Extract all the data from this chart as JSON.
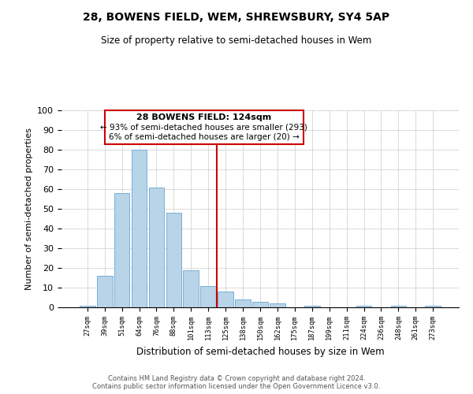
{
  "title": "28, BOWENS FIELD, WEM, SHREWSBURY, SY4 5AP",
  "subtitle": "Size of property relative to semi-detached houses in Wem",
  "xlabel": "Distribution of semi-detached houses by size in Wem",
  "ylabel": "Number of semi-detached properties",
  "bin_labels": [
    "27sqm",
    "39sqm",
    "51sqm",
    "64sqm",
    "76sqm",
    "88sqm",
    "101sqm",
    "113sqm",
    "125sqm",
    "138sqm",
    "150sqm",
    "162sqm",
    "175sqm",
    "187sqm",
    "199sqm",
    "211sqm",
    "224sqm",
    "236sqm",
    "248sqm",
    "261sqm",
    "273sqm"
  ],
  "bar_heights": [
    1,
    16,
    58,
    80,
    61,
    48,
    19,
    11,
    8,
    4,
    3,
    2,
    0,
    1,
    0,
    0,
    1,
    0,
    1,
    0,
    1
  ],
  "bar_color": "#b8d4e8",
  "bar_edge_color": "#7bafd4",
  "vline_x_index": 8,
  "vline_color": "#cc0000",
  "annotation_title": "28 BOWENS FIELD: 124sqm",
  "annotation_line1": "← 93% of semi-detached houses are smaller (293)",
  "annotation_line2": "6% of semi-detached houses are larger (20) →",
  "annotation_box_color": "#ffffff",
  "annotation_box_edge": "#cc0000",
  "ylim": [
    0,
    100
  ],
  "footer1": "Contains HM Land Registry data © Crown copyright and database right 2024.",
  "footer2": "Contains public sector information licensed under the Open Government Licence v3.0."
}
